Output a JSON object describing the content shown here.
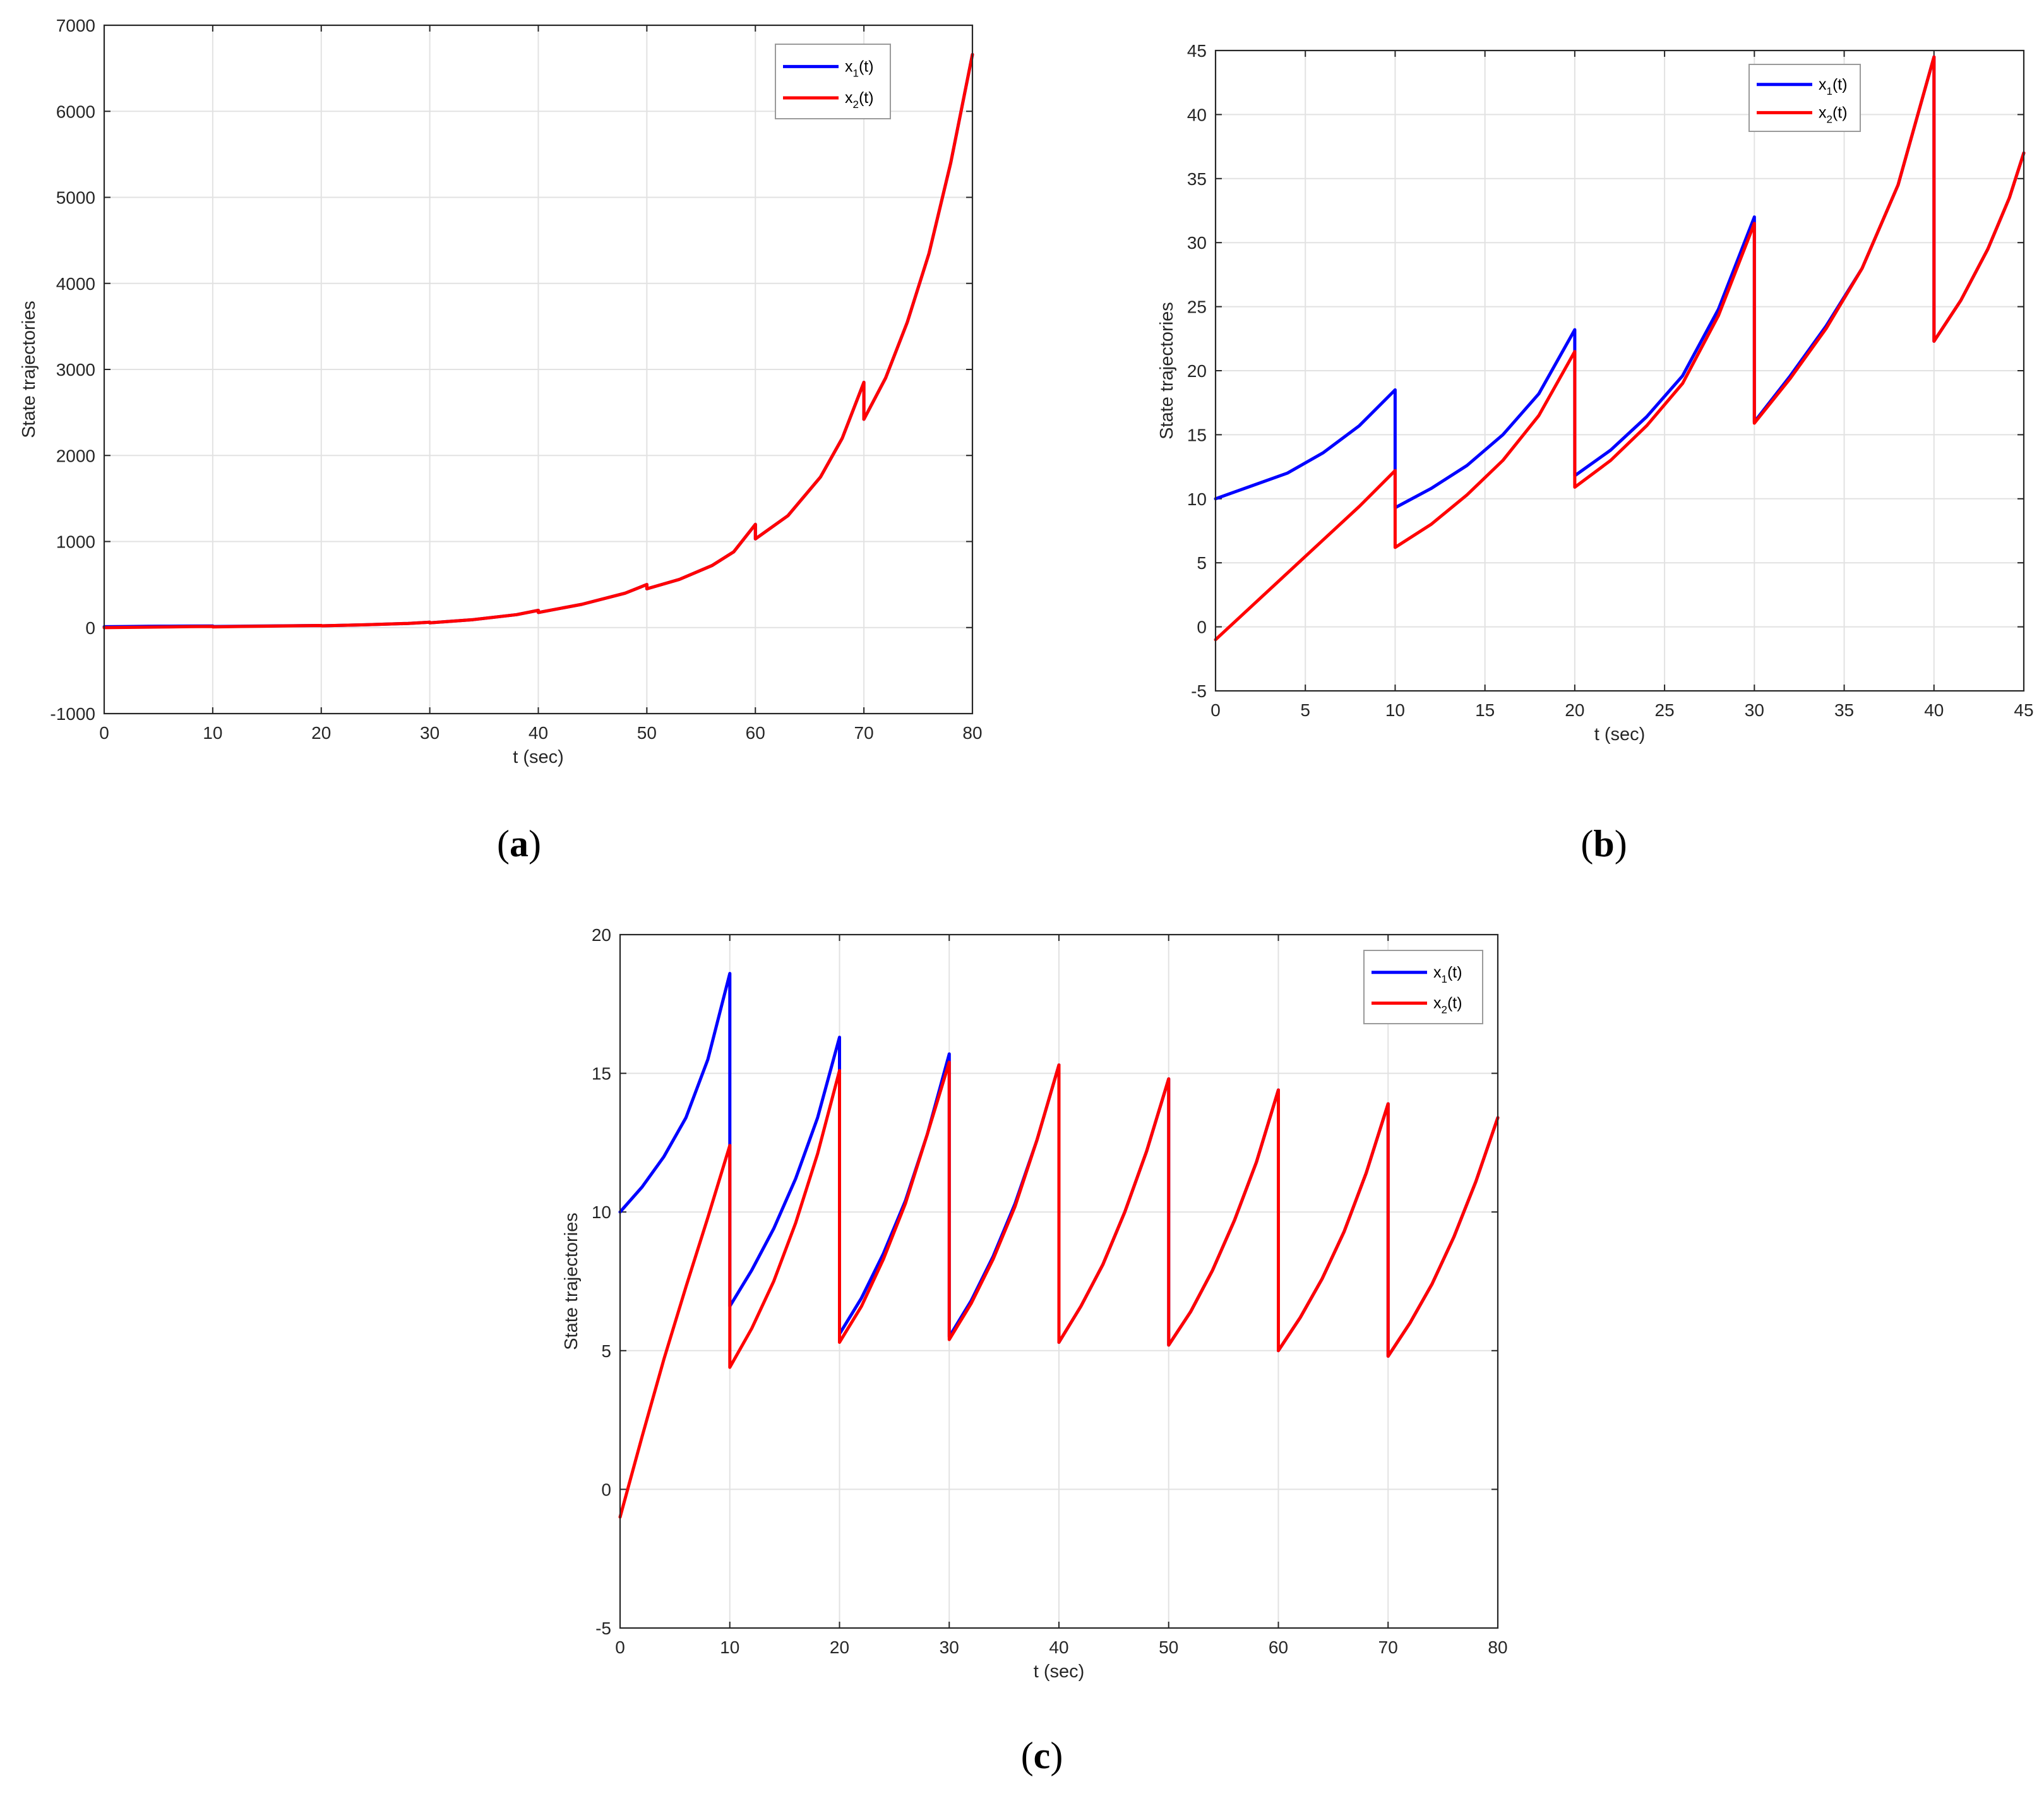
{
  "figure": {
    "captions": [
      {
        "open": "(",
        "letter": "a",
        "close": ")"
      },
      {
        "open": "(",
        "letter": "b",
        "close": ")"
      },
      {
        "open": "(",
        "letter": "c",
        "close": ")"
      }
    ]
  },
  "colors": {
    "x1": "#0000ff",
    "x2": "#ff0000",
    "grid": "#e2e2e2",
    "axis": "#262626"
  },
  "chart_data": [
    {
      "id": "a",
      "type": "line",
      "xlabel": "t (sec)",
      "ylabel": "State trajectories",
      "xlim": [
        0,
        80
      ],
      "ylim": [
        -1000,
        7000
      ],
      "xticks": [
        0,
        10,
        20,
        30,
        40,
        50,
        60,
        70,
        80
      ],
      "yticks": [
        -1000,
        0,
        1000,
        2000,
        3000,
        4000,
        5000,
        6000,
        7000
      ],
      "grid": true,
      "legend_position": "top-right",
      "series": [
        {
          "name": "x1(t)",
          "name_base": "x",
          "name_sub": "1",
          "name_tail": "(t)",
          "color": "#0000ff",
          "points": [
            [
              0,
              10
            ],
            [
              2,
              12
            ],
            [
              4,
              14
            ],
            [
              6,
              16
            ],
            [
              8,
              17
            ],
            [
              10,
              19
            ],
            [
              10,
              12
            ],
            [
              14,
              17
            ],
            [
              18,
              22
            ],
            [
              20,
              24
            ],
            [
              20,
              20
            ],
            [
              24,
              32
            ],
            [
              28,
              48
            ],
            [
              30,
              62
            ],
            [
              30,
              55
            ],
            [
              34,
              92
            ],
            [
              38,
              150
            ],
            [
              40,
              200
            ],
            [
              40,
              175
            ],
            [
              44,
              270
            ],
            [
              48,
              400
            ],
            [
              50,
              500
            ],
            [
              50,
              450
            ],
            [
              53,
              560
            ],
            [
              56,
              720
            ],
            [
              58,
              880
            ],
            [
              60,
              1200
            ],
            [
              60,
              1030
            ],
            [
              63,
              1300
            ],
            [
              66,
              1750
            ],
            [
              68,
              2200
            ],
            [
              70,
              2850
            ],
            [
              70,
              2420
            ],
            [
              72,
              2900
            ],
            [
              74,
              3550
            ],
            [
              76,
              4350
            ],
            [
              78,
              5400
            ],
            [
              80,
              6660
            ]
          ]
        },
        {
          "name": "x2(t)",
          "name_base": "x",
          "name_sub": "2",
          "name_tail": "(t)",
          "color": "#ff0000",
          "points": [
            [
              0,
              -1
            ],
            [
              2,
              2
            ],
            [
              4,
              5
            ],
            [
              6,
              8
            ],
            [
              8,
              11
            ],
            [
              10,
              13
            ],
            [
              10,
              8
            ],
            [
              14,
              15
            ],
            [
              18,
              21
            ],
            [
              20,
              24
            ],
            [
              20,
              20
            ],
            [
              24,
              32
            ],
            [
              28,
              48
            ],
            [
              30,
              62
            ],
            [
              30,
              55
            ],
            [
              34,
              92
            ],
            [
              38,
              150
            ],
            [
              40,
              200
            ],
            [
              40,
              175
            ],
            [
              44,
              270
            ],
            [
              48,
              400
            ],
            [
              50,
              500
            ],
            [
              50,
              450
            ],
            [
              53,
              560
            ],
            [
              56,
              720
            ],
            [
              58,
              880
            ],
            [
              60,
              1200
            ],
            [
              60,
              1030
            ],
            [
              63,
              1300
            ],
            [
              66,
              1750
            ],
            [
              68,
              2200
            ],
            [
              70,
              2850
            ],
            [
              70,
              2420
            ],
            [
              72,
              2900
            ],
            [
              74,
              3550
            ],
            [
              76,
              4350
            ],
            [
              78,
              5400
            ],
            [
              80,
              6660
            ]
          ]
        }
      ]
    },
    {
      "id": "b",
      "type": "line",
      "xlabel": "t (sec)",
      "ylabel": "State trajectories",
      "xlim": [
        0,
        45
      ],
      "ylim": [
        -5,
        45
      ],
      "xticks": [
        0,
        5,
        10,
        15,
        20,
        25,
        30,
        35,
        40,
        45
      ],
      "yticks": [
        -5,
        0,
        5,
        10,
        15,
        20,
        25,
        30,
        35,
        40,
        45
      ],
      "grid": true,
      "legend_position": "top-right",
      "series": [
        {
          "name": "x1(t)",
          "name_base": "x",
          "name_sub": "1",
          "name_tail": "(t)",
          "color": "#0000ff",
          "points": [
            [
              0,
              10
            ],
            [
              2,
              11
            ],
            [
              4,
              12
            ],
            [
              6,
              13.6
            ],
            [
              8,
              15.7
            ],
            [
              10,
              18.5
            ],
            [
              10,
              9.3
            ],
            [
              12,
              10.8
            ],
            [
              14,
              12.6
            ],
            [
              16,
              15
            ],
            [
              18,
              18.2
            ],
            [
              20,
              23.2
            ],
            [
              20,
              11.8
            ],
            [
              22,
              13.8
            ],
            [
              24,
              16.4
            ],
            [
              26,
              19.6
            ],
            [
              28,
              24.8
            ],
            [
              30,
              32
            ],
            [
              30,
              16
            ],
            [
              32,
              19.6
            ],
            [
              34,
              23.5
            ],
            [
              36,
              28
            ],
            [
              38,
              34.5
            ],
            [
              40,
              44.5
            ],
            [
              40,
              22.3
            ],
            [
              41.5,
              25.5
            ],
            [
              43,
              29.5
            ],
            [
              44.2,
              33.5
            ],
            [
              45,
              37
            ]
          ]
        },
        {
          "name": "x2(t)",
          "name_base": "x",
          "name_sub": "2",
          "name_tail": "(t)",
          "color": "#ff0000",
          "points": [
            [
              0,
              -1
            ],
            [
              2,
              1.6
            ],
            [
              4,
              4.2
            ],
            [
              6,
              6.8
            ],
            [
              8,
              9.4
            ],
            [
              10,
              12.2
            ],
            [
              10,
              6.2
            ],
            [
              12,
              8
            ],
            [
              14,
              10.3
            ],
            [
              16,
              13
            ],
            [
              18,
              16.5
            ],
            [
              20,
              21.5
            ],
            [
              20,
              10.9
            ],
            [
              22,
              13
            ],
            [
              24,
              15.7
            ],
            [
              26,
              19
            ],
            [
              28,
              24.3
            ],
            [
              30,
              31.5
            ],
            [
              30,
              15.9
            ],
            [
              32,
              19.4
            ],
            [
              34,
              23.3
            ],
            [
              36,
              28
            ],
            [
              38,
              34.5
            ],
            [
              40,
              44.5
            ],
            [
              40,
              22.3
            ],
            [
              41.5,
              25.5
            ],
            [
              43,
              29.5
            ],
            [
              44.2,
              33.5
            ],
            [
              45,
              37
            ]
          ]
        }
      ]
    },
    {
      "id": "c",
      "type": "line",
      "xlabel": "t (sec)",
      "ylabel": "State trajectories",
      "xlim": [
        0,
        80
      ],
      "ylim": [
        -5,
        20
      ],
      "xticks": [
        0,
        10,
        20,
        30,
        40,
        50,
        60,
        70,
        80
      ],
      "yticks": [
        -5,
        0,
        5,
        10,
        15,
        20
      ],
      "grid": true,
      "legend_position": "top-right",
      "series": [
        {
          "name": "x1(t)",
          "name_base": "x",
          "name_sub": "1",
          "name_tail": "(t)",
          "color": "#0000ff",
          "points": [
            [
              0,
              10
            ],
            [
              2,
              10.9
            ],
            [
              4,
              12
            ],
            [
              6,
              13.4
            ],
            [
              8,
              15.5
            ],
            [
              10,
              18.6
            ],
            [
              10,
              6.6
            ],
            [
              12,
              7.9
            ],
            [
              14,
              9.4
            ],
            [
              16,
              11.2
            ],
            [
              18,
              13.4
            ],
            [
              20,
              16.3
            ],
            [
              20,
              5.6
            ],
            [
              22,
              6.9
            ],
            [
              24,
              8.5
            ],
            [
              26,
              10.4
            ],
            [
              28,
              12.8
            ],
            [
              30,
              15.7
            ],
            [
              30,
              5.5
            ],
            [
              32,
              6.8
            ],
            [
              34,
              8.4
            ],
            [
              36,
              10.3
            ],
            [
              38,
              12.6
            ],
            [
              40,
              15.3
            ],
            [
              40,
              5.3
            ],
            [
              42,
              6.6
            ],
            [
              44,
              8.1
            ],
            [
              46,
              10
            ],
            [
              48,
              12.2
            ],
            [
              50,
              14.8
            ],
            [
              50,
              5.2
            ],
            [
              52,
              6.4
            ],
            [
              54,
              7.9
            ],
            [
              56,
              9.7
            ],
            [
              58,
              11.8
            ],
            [
              60,
              14.4
            ],
            [
              60,
              5
            ],
            [
              62,
              6.2
            ],
            [
              64,
              7.6
            ],
            [
              66,
              9.3
            ],
            [
              68,
              11.4
            ],
            [
              70,
              13.9
            ],
            [
              70,
              4.8
            ],
            [
              72,
              6
            ],
            [
              74,
              7.4
            ],
            [
              76,
              9.1
            ],
            [
              78,
              11.1
            ],
            [
              80,
              13.4
            ]
          ]
        },
        {
          "name": "x2(t)",
          "name_base": "x",
          "name_sub": "2",
          "name_tail": "(t)",
          "color": "#ff0000",
          "points": [
            [
              0,
              -1
            ],
            [
              2,
              1.9
            ],
            [
              4,
              4.7
            ],
            [
              6,
              7.3
            ],
            [
              8,
              9.8
            ],
            [
              10,
              12.4
            ],
            [
              10,
              4.4
            ],
            [
              12,
              5.8
            ],
            [
              14,
              7.5
            ],
            [
              16,
              9.6
            ],
            [
              18,
              12.1
            ],
            [
              20,
              15.1
            ],
            [
              20,
              5.3
            ],
            [
              22,
              6.6
            ],
            [
              24,
              8.3
            ],
            [
              26,
              10.3
            ],
            [
              28,
              12.8
            ],
            [
              30,
              15.4
            ],
            [
              30,
              5.4
            ],
            [
              32,
              6.7
            ],
            [
              34,
              8.3
            ],
            [
              36,
              10.2
            ],
            [
              38,
              12.6
            ],
            [
              40,
              15.3
            ],
            [
              40,
              5.3
            ],
            [
              42,
              6.6
            ],
            [
              44,
              8.1
            ],
            [
              46,
              10
            ],
            [
              48,
              12.2
            ],
            [
              50,
              14.8
            ],
            [
              50,
              5.2
            ],
            [
              52,
              6.4
            ],
            [
              54,
              7.9
            ],
            [
              56,
              9.7
            ],
            [
              58,
              11.8
            ],
            [
              60,
              14.4
            ],
            [
              60,
              5
            ],
            [
              62,
              6.2
            ],
            [
              64,
              7.6
            ],
            [
              66,
              9.3
            ],
            [
              68,
              11.4
            ],
            [
              70,
              13.9
            ],
            [
              70,
              4.8
            ],
            [
              72,
              6
            ],
            [
              74,
              7.4
            ],
            [
              76,
              9.1
            ],
            [
              78,
              11.1
            ],
            [
              80,
              13.4
            ]
          ]
        }
      ]
    }
  ]
}
